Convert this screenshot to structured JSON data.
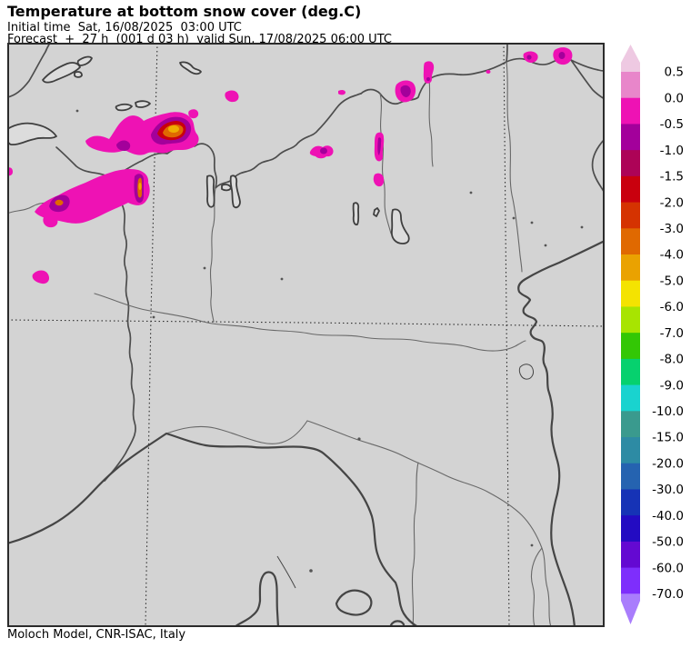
{
  "header": {
    "title": "Temperature at bottom snow cover (deg.C)",
    "initial_time": "Initial time  Sat, 16/08/2025  03:00 UTC",
    "forecast": "Forecast  +  27 h  (001 d 03 h)  valid Sun, 17/08/2025 06:00 UTC"
  },
  "footer": {
    "credit": "Moloch Model, CNR-ISAC, Italy"
  },
  "colorbar": {
    "units": "deg.C",
    "tick_labels": [
      "0.5",
      "0.0",
      "-0.5",
      "-1.0",
      "-1.5",
      "-2.0",
      "-3.0",
      "-4.0",
      "-5.0",
      "-6.0",
      "-7.0",
      "-8.0",
      "-9.0",
      "-10.0",
      "-15.0",
      "-20.0",
      "-30.0",
      "-40.0",
      "-50.0",
      "-60.0",
      "-70.0"
    ],
    "segment_colors": [
      "#e886ca",
      "#ee12b4",
      "#a3009b",
      "#ad0357",
      "#c9000e",
      "#d53301",
      "#e06901",
      "#eaa201",
      "#f4e301",
      "#a8e401",
      "#33c705",
      "#06d16e",
      "#19d3cf",
      "#3a9a8e",
      "#2d8ba4",
      "#2563b0",
      "#1633b6",
      "#230bc2",
      "#6409d2",
      "#7e2efc"
    ],
    "arrow_top_color": "#eec9e2",
    "arrow_bottom_color": "#a97dfc"
  },
  "colors": {
    "map-bg": "#d3d3d3",
    "frame": "#2b2b2b",
    "nat-border": "#4d4d4d",
    "region-border": "#686868",
    "coast": "#454545",
    "grid": "#2e2e2e",
    "lake-fill": "#dcdcdc",
    "lake-stroke": "#3f3f3f",
    "snow-magenta": "#ee12b4",
    "snow-purple": "#a3009b",
    "snow-crimson": "#ad0357",
    "snow-red": "#c9000e",
    "snow-orange": "#e06901",
    "snow-amber": "#eeae02",
    "speck": "#555555"
  }
}
